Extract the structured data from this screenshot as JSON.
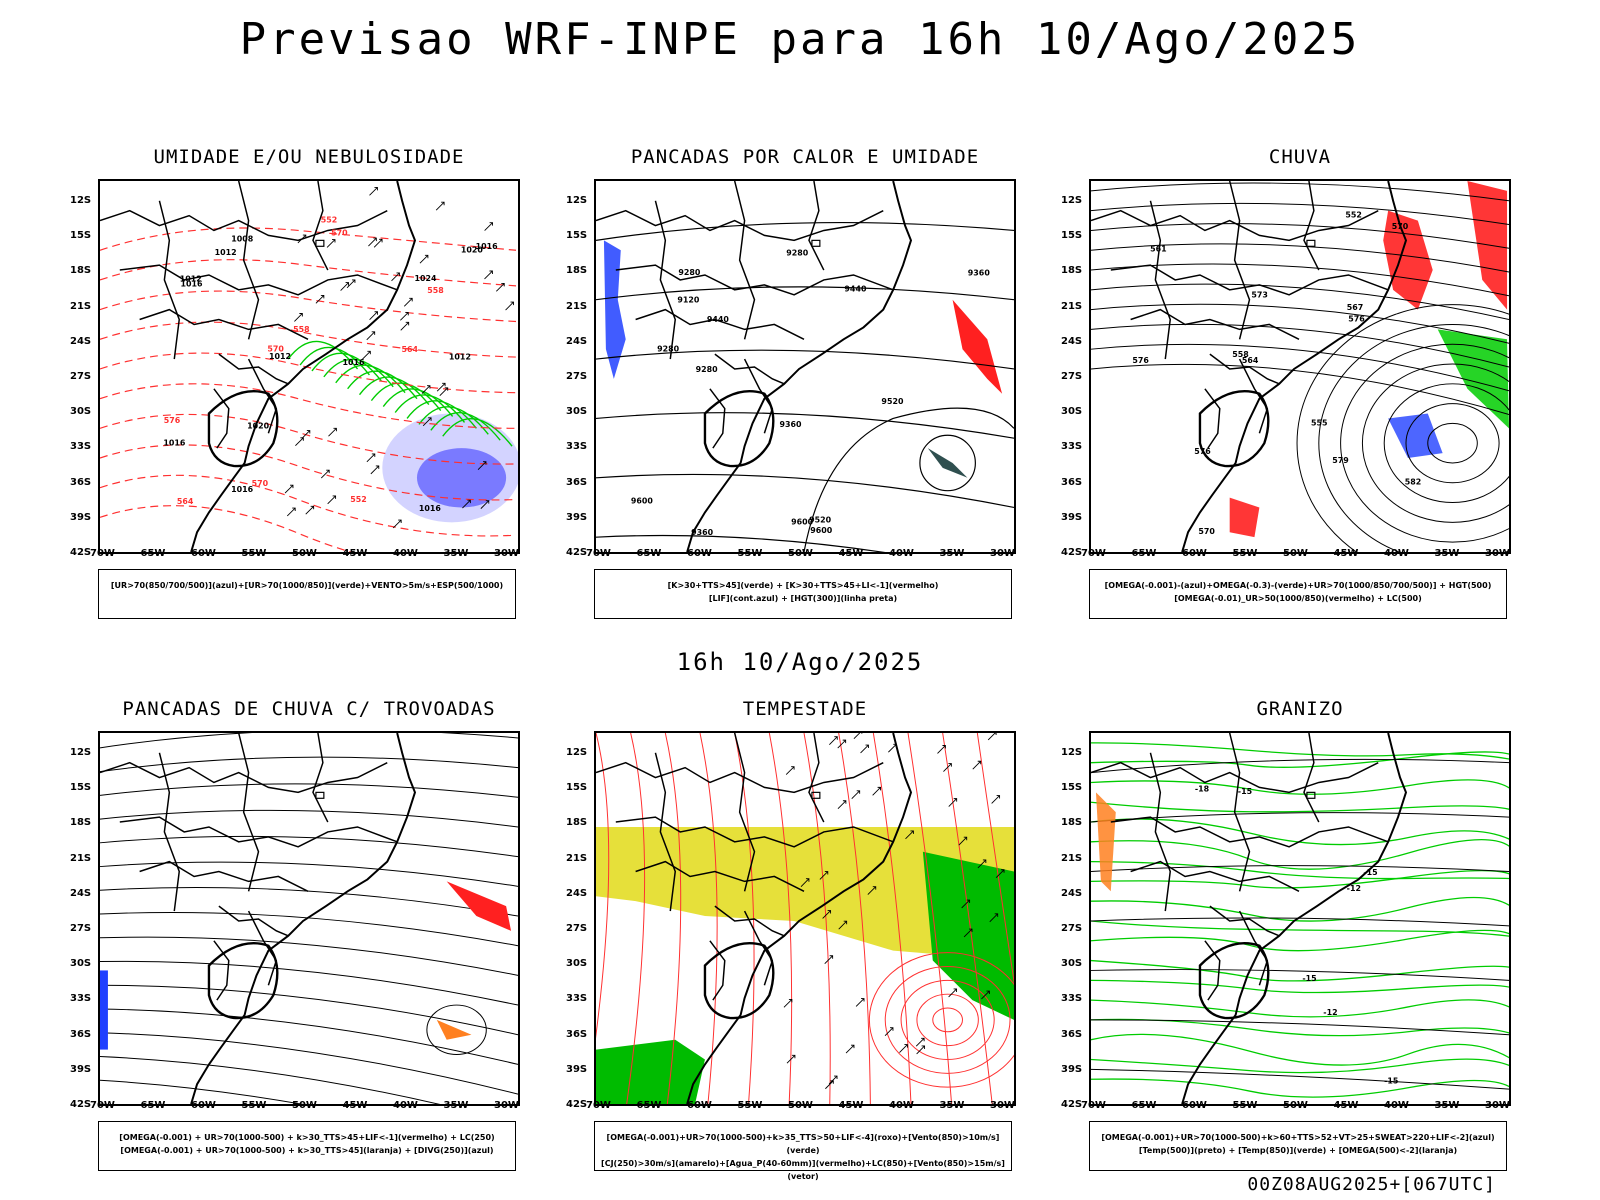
{
  "header": {
    "title": "Previsao WRF-INPE  para 16h 10/Ago/2025"
  },
  "middle_title": "16h 10/Ago/2025",
  "footer": "00Z08AUG2025+[067UTC]",
  "lat_ticks": [
    "12S",
    "15S",
    "18S",
    "21S",
    "24S",
    "27S",
    "30S",
    "33S",
    "36S",
    "39S",
    "42S"
  ],
  "lon_ticks": [
    "70W",
    "65W",
    "60W",
    "55W",
    "50W",
    "45W",
    "40W",
    "35W",
    "30W"
  ],
  "panels": [
    {
      "title": "UMIDADE E/OU NEBULOSIDADE",
      "legend": [
        "[UR>70(850/700/500)](azul)+[UR>70(1000/850)](verde)+VENTO>5m/s+ESP(500/1000)"
      ],
      "contour_labels": [
        "1012",
        "1012",
        "1012",
        "1016",
        "1016",
        "1016",
        "1016",
        "1016",
        "1020",
        "1020",
        "1024",
        "1008",
        "1012",
        "1016",
        "570",
        "570",
        "564",
        "558",
        "552",
        "552",
        "576",
        "570",
        "564",
        "558"
      ],
      "colors": {
        "high_rh": "#4040ff",
        "low_rh": "#00cc00",
        "thickness": "#ff3030"
      }
    },
    {
      "title": "PANCADAS POR CALOR E UMIDADE",
      "legend": [
        "[K>30+TTS>45](verde) + [K>30+TTS>45+LI<-1](vermelho)",
        "[LIF](cont.azul) + [HGT(300)](linha preta)"
      ],
      "contour_labels": [
        "9600",
        "9600",
        "9600",
        "9520",
        "9520",
        "9440",
        "9440",
        "9360",
        "9360",
        "9280",
        "9280",
        "9360",
        "9280",
        "9280",
        "9120"
      ],
      "colors": {
        "convection": "#ff2020",
        "lif": "#2040ff",
        "dark": "#2f4f4f"
      }
    },
    {
      "title": "CHUVA",
      "legend": [
        "[OMEGA(-0.001)-(azul)+OMEGA(-0.3)-(verde)+UR>70(1000/850/700/500)] + HGT(500)",
        "[OMEGA(-0.01)_UR>50(1000/850)(vermelho) + LC(500)"
      ],
      "contour_labels": [
        "582",
        "576",
        "576",
        "570",
        "564",
        "558",
        "552",
        "561",
        "555",
        "573",
        "579",
        "567",
        "570",
        "576"
      ],
      "colors": {
        "rain": "#ff2020",
        "omega_weak": "#2040ff",
        "omega_strong": "#00cc00"
      }
    },
    {
      "title": "PANCADAS DE CHUVA C/ TROVOADAS",
      "legend": [
        "[OMEGA(-0.001) + UR>70(1000-500) + k>30_TTS>45+LIF<-1](vermelho) + LC(250)",
        "[OMEGA(-0.001) + UR>70(1000-500) + k>30_TTS>45](laranja) + [DIVG(250)](azul)"
      ],
      "contour_labels": [],
      "colors": {
        "storm": "#ff2020",
        "orange": "#ff8020",
        "divergence": "#2040ff"
      }
    },
    {
      "title": "TEMPESTADE",
      "legend": [
        "[OMEGA(-0.001)+UR>70(1000-500)+k>35_TTS>50+LIF<-4](roxo)+[Vento(850)>10m/s](verde)",
        "[CJ(250)>30m/s](amarelo)+[Agua_P(40-60mm)](vermelho)+LC(850)+[Vento(850)>15m/s](vetor)"
      ],
      "contour_labels": [],
      "colors": {
        "jet": "#e6e03a",
        "wind": "#00bb00",
        "streamline": "#ff3030"
      }
    },
    {
      "title": "GRANIZO",
      "legend": [
        "[OMEGA(-0.001)+UR>70(1000-500)+k>60+TTS>52+VT>25+SWEAT>220+LIF<-2](azul)",
        "[Temp(500)](preto) + [Temp(850)](verde) + [OMEGA(500)<-2](laranja)"
      ],
      "contour_labels": [
        "-12",
        "-15",
        "-15",
        "-15",
        "-18",
        "-12",
        "-15"
      ],
      "colors": {
        "temp850": "#00cc00",
        "omega500": "#ff8020"
      }
    }
  ]
}
